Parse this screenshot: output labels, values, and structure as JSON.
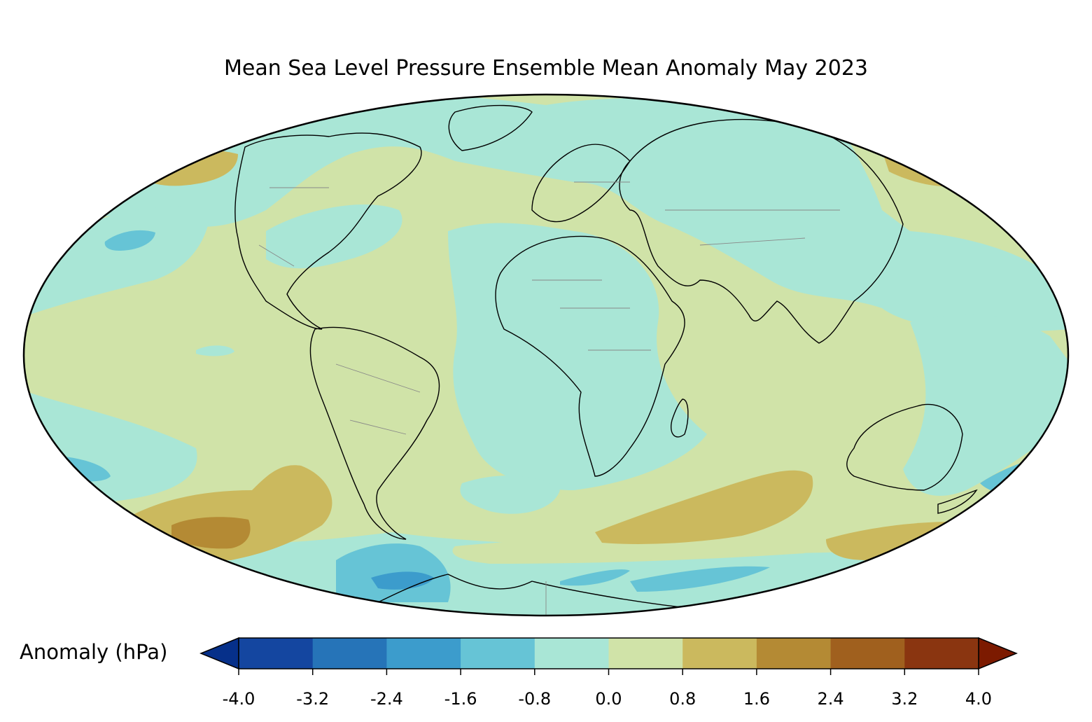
{
  "title": "Mean Sea Level Pressure Ensemble Mean Anomaly May 2023",
  "colorbar": {
    "label": "Anomaly (hPa)",
    "ticks": [
      "-4.0",
      "-3.2",
      "-2.4",
      "-1.6",
      "-0.8",
      "0.0",
      "0.8",
      "1.6",
      "2.4",
      "3.2",
      "4.0"
    ],
    "bins": [
      {
        "from": -4.0,
        "to": -3.2,
        "color": "#1446a0"
      },
      {
        "from": -3.2,
        "to": -2.4,
        "color": "#2674b8"
      },
      {
        "from": -2.4,
        "to": -1.6,
        "color": "#3c9ccc"
      },
      {
        "from": -1.6,
        "to": -0.8,
        "color": "#66c4d6"
      },
      {
        "from": -0.8,
        "to": 0.0,
        "color": "#a9e6d6"
      },
      {
        "from": 0.0,
        "to": 0.8,
        "color": "#d0e3a8"
      },
      {
        "from": 0.8,
        "to": 1.6,
        "color": "#cbb95e"
      },
      {
        "from": 1.6,
        "to": 2.4,
        "color": "#b48a34"
      },
      {
        "from": 2.4,
        "to": 3.2,
        "color": "#a0601e"
      },
      {
        "from": 3.2,
        "to": 4.0,
        "color": "#8a3510"
      }
    ],
    "under_color": "#06308a",
    "over_color": "#7c1a00"
  },
  "map": {
    "projection": "Mollweide",
    "ocean_base_color": "#d0e3a8",
    "coastline_color": "#000000",
    "border_color": "#888888"
  }
}
